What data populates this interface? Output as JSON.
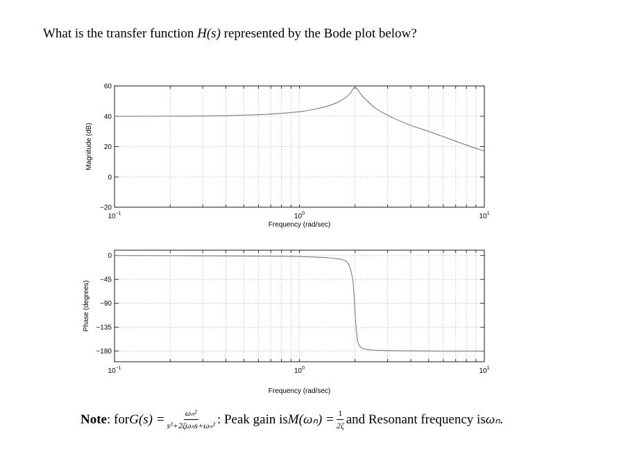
{
  "question": {
    "prefix": "What is the transfer function ",
    "symbol": "H(s)",
    "suffix": " represented by the Bode plot below?"
  },
  "chart_data": [
    {
      "type": "line",
      "name": "magnitude",
      "xscale": "log",
      "xlim": [
        0.1,
        10
      ],
      "ylim": [
        -20,
        60
      ],
      "yticks": [
        -20,
        0,
        20,
        40,
        60
      ],
      "ytick_labels": [
        "−20",
        "0",
        "20",
        "40",
        "60"
      ],
      "xtick_labels": [
        {
          "base": "10",
          "exp": "−1"
        },
        {
          "base": "10",
          "exp": "0"
        },
        {
          "base": "10",
          "exp": "1"
        }
      ],
      "ylabel": "Magnitude (dB)",
      "xlabel": "Frequency (rad/sec)",
      "grid": true,
      "series": [
        {
          "x": [
            0.1,
            0.3,
            0.6,
            1.0,
            1.3,
            1.6,
            1.85,
            2.0,
            2.2,
            2.6,
            3.2,
            4.0,
            5.0,
            6.5,
            8.0,
            10.0
          ],
          "values": [
            40,
            40.2,
            41,
            43,
            45.5,
            49,
            54,
            59,
            53,
            45,
            39,
            34,
            30,
            25,
            21,
            17
          ]
        }
      ]
    },
    {
      "type": "line",
      "name": "phase",
      "xscale": "log",
      "xlim": [
        0.1,
        10
      ],
      "ylim": [
        -200,
        10
      ],
      "yticks": [
        0,
        -45,
        -90,
        -135,
        -180
      ],
      "ytick_labels": [
        "0",
        "−45",
        "−90",
        "−135",
        "−180"
      ],
      "xtick_labels": [
        {
          "base": "10",
          "exp": "−1"
        },
        {
          "base": "10",
          "exp": "0"
        },
        {
          "base": "10",
          "exp": "1"
        }
      ],
      "ylabel": "Phase (degrees)",
      "xlabel": "Frequency (rad/sec)",
      "grid": true,
      "series": [
        {
          "x": [
            0.1,
            0.5,
            1.0,
            1.5,
            1.8,
            1.93,
            1.97,
            2.0,
            2.03,
            2.08,
            2.2,
            2.5,
            3.0,
            4.0,
            6.0,
            10.0
          ],
          "values": [
            0,
            -1,
            -2,
            -5,
            -12,
            -40,
            -70,
            -110,
            -140,
            -165,
            -175,
            -178,
            -179,
            -179.5,
            -180,
            -180
          ]
        }
      ]
    }
  ],
  "note": {
    "label": "Note",
    "for_text": ": for ",
    "g_symbol": "G(s) =",
    "numerator": "ωₙ²",
    "denominator": "s²+2ζωₙs+ωₙ²",
    "peak_text": ": Peak gain is ",
    "peak_symbol": "M(ωₙ) =",
    "peak_num": "1",
    "peak_den": "2ζ",
    "resonant_text": " and Resonant frequency is ",
    "resonant_symbol": "ωₙ."
  }
}
